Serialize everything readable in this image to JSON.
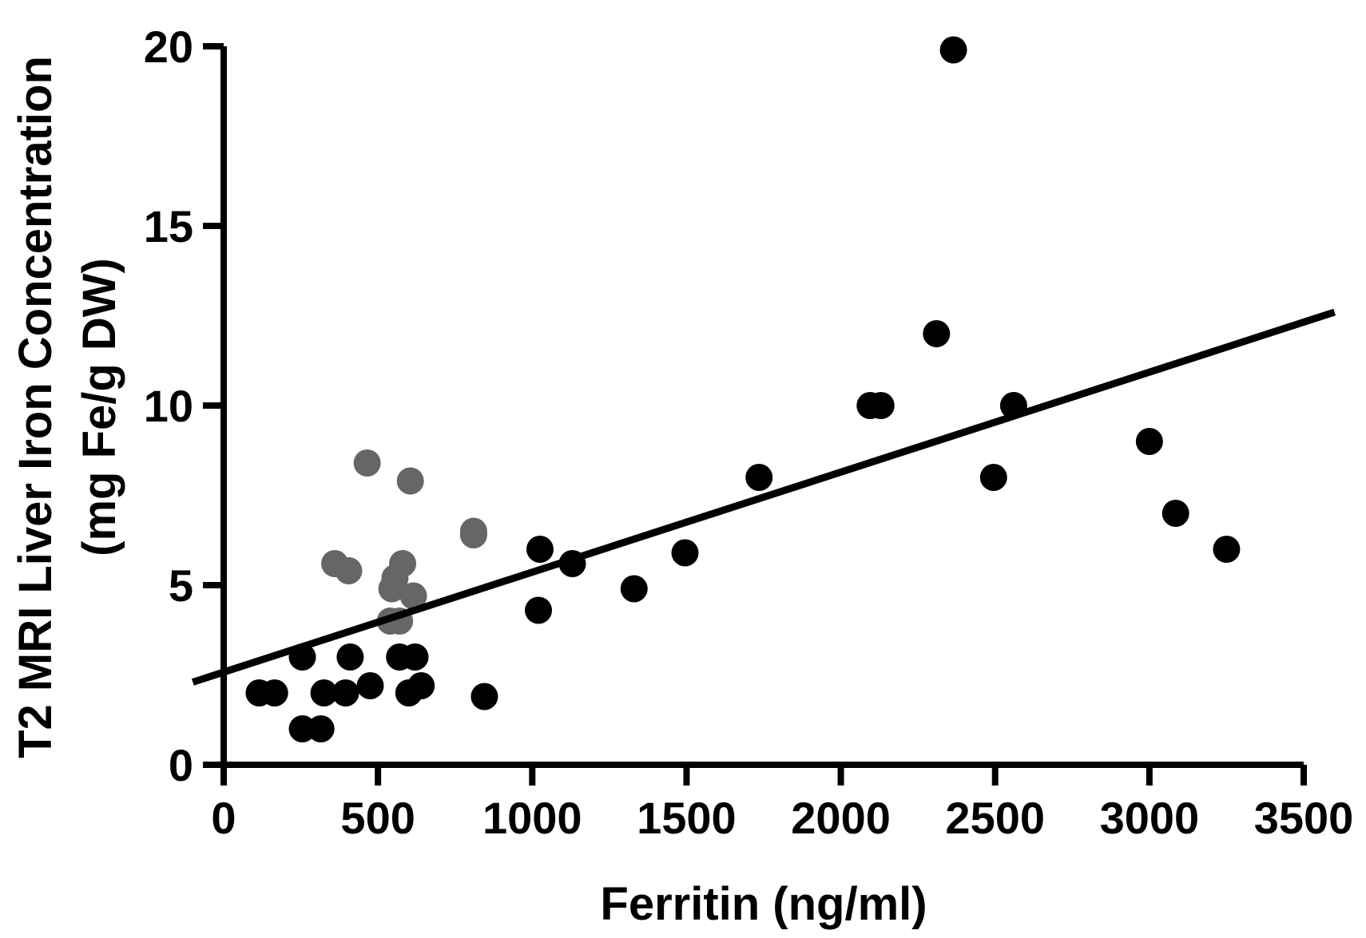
{
  "chart_data": {
    "type": "scatter",
    "title": "",
    "xlabel": "Ferritin (ng/ml)",
    "ylabel_lines": [
      "T2 MRI Liver Iron Concentration",
      "(mg Fe/g DW)"
    ],
    "xlim": [
      0,
      3500
    ],
    "ylim": [
      0,
      20
    ],
    "x_ticks": [
      0,
      500,
      1000,
      1500,
      2000,
      2500,
      3000,
      3500
    ],
    "y_ticks": [
      0,
      5,
      10,
      15,
      20
    ],
    "grid": false,
    "legend": "none",
    "series": [
      {
        "color": "#000000",
        "points": [
          [
            115,
            2.0
          ],
          [
            165,
            2.0
          ],
          [
            255,
            3.0
          ],
          [
            255,
            1.0
          ],
          [
            315,
            1.0
          ],
          [
            325,
            2.0
          ],
          [
            395,
            2.0
          ],
          [
            410,
            3.0
          ],
          [
            475,
            2.2
          ],
          [
            570,
            3.0
          ],
          [
            600,
            2.0
          ],
          [
            620,
            3.0
          ],
          [
            640,
            2.2
          ],
          [
            845,
            1.9
          ],
          [
            1020,
            4.3
          ],
          [
            1025,
            6.0
          ],
          [
            1130,
            5.6
          ],
          [
            1330,
            4.9
          ],
          [
            1495,
            5.9
          ],
          [
            1735,
            8.0
          ],
          [
            2095,
            10.0
          ],
          [
            2130,
            10.0
          ],
          [
            2310,
            12.0
          ],
          [
            2365,
            19.9
          ],
          [
            2495,
            8.0
          ],
          [
            2560,
            10.0
          ],
          [
            3000,
            9.0
          ],
          [
            3085,
            7.0
          ],
          [
            3250,
            6.0
          ]
        ]
      },
      {
        "color": "#666666",
        "points": [
          [
            360,
            5.6
          ],
          [
            405,
            5.4
          ],
          [
            465,
            8.4
          ],
          [
            540,
            4.0
          ],
          [
            545,
            4.9
          ],
          [
            555,
            5.2
          ],
          [
            570,
            4.0
          ],
          [
            580,
            5.6
          ],
          [
            605,
            7.9
          ],
          [
            615,
            4.7
          ],
          [
            810,
            6.4
          ],
          [
            810,
            6.5
          ]
        ]
      }
    ],
    "trendline": {
      "x": [
        -100,
        3600
      ],
      "y": [
        2.3,
        12.6
      ],
      "color": "#000000"
    }
  }
}
